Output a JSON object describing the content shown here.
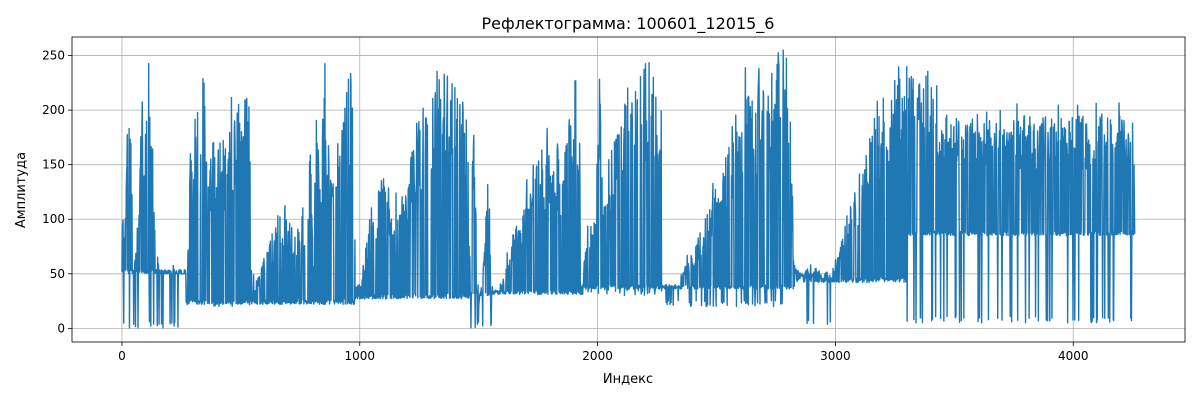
{
  "chart_data": {
    "type": "line",
    "title": "Рефлектограмма: 100601_12015_6",
    "xlabel": "Индекс",
    "ylabel": "Амплитуда",
    "xlim": [
      -210,
      4470
    ],
    "ylim": [
      -12.5,
      267
    ],
    "xticks": [
      0,
      1000,
      2000,
      3000,
      4000
    ],
    "yticks": [
      0,
      50,
      100,
      150,
      200,
      250
    ],
    "grid": true,
    "color": "#1f77b4",
    "series": [
      {
        "segments": [
          {
            "x0": 0,
            "x1": 270,
            "base": 50,
            "low": 0,
            "peaks": [
              [
                0,
                118
              ],
              [
                10,
                80
              ],
              [
                30,
                242
              ],
              [
                50,
                50
              ],
              [
                70,
                110
              ],
              [
                85,
                245
              ],
              [
                95,
                140
              ],
              [
                105,
                232
              ],
              [
                120,
                232
              ],
              [
                140,
                85
              ],
              [
                160,
                50
              ],
              [
                200,
                50
              ],
              [
                240,
                50
              ],
              [
                265,
                50
              ]
            ]
          },
          {
            "x0": 270,
            "x1": 540,
            "base": 22,
            "low": 20,
            "peaks": [
              [
                275,
                30
              ],
              [
                285,
                188
              ],
              [
                300,
                160
              ],
              [
                315,
                245
              ],
              [
                330,
                160
              ],
              [
                345,
                240
              ],
              [
                360,
                120
              ],
              [
                375,
                185
              ],
              [
                400,
                150
              ],
              [
                415,
                193
              ],
              [
                430,
                175
              ],
              [
                450,
                190
              ],
              [
                470,
                210
              ],
              [
                490,
                218
              ],
              [
                510,
                218
              ],
              [
                525,
                240
              ],
              [
                535,
                255
              ]
            ]
          },
          {
            "x0": 540,
            "x1": 980,
            "base": 22,
            "low": 22,
            "peaks": [
              [
                560,
                40
              ],
              [
                590,
                60
              ],
              [
                620,
                80
              ],
              [
                650,
                100
              ],
              [
                670,
                114
              ],
              [
                690,
                100
              ],
              [
                710,
                95
              ],
              [
                730,
                85
              ],
              [
                750,
                90
              ],
              [
                770,
                105
              ],
              [
                785,
                100
              ],
              [
                795,
                220
              ],
              [
                805,
                50
              ],
              [
                820,
                250
              ],
              [
                835,
                120
              ],
              [
                850,
                250
              ],
              [
                865,
                190
              ],
              [
                880,
                170
              ],
              [
                900,
                160
              ],
              [
                920,
                200
              ],
              [
                940,
                215
              ],
              [
                955,
                240
              ],
              [
                970,
                250
              ],
              [
                978,
                120
              ]
            ]
          },
          {
            "x0": 980,
            "x1": 1460,
            "base": 27,
            "low": 27,
            "peaks": [
              [
                1000,
                40
              ],
              [
                1030,
                80
              ],
              [
                1060,
                110
              ],
              [
                1080,
                130
              ],
              [
                1100,
                140
              ],
              [
                1120,
                130
              ],
              [
                1140,
                128
              ],
              [
                1160,
                130
              ],
              [
                1180,
                120
              ],
              [
                1200,
                140
              ],
              [
                1220,
                170
              ],
              [
                1240,
                190
              ],
              [
                1260,
                205
              ],
              [
                1280,
                215
              ],
              [
                1300,
                220
              ],
              [
                1320,
                230
              ],
              [
                1340,
                235
              ],
              [
                1360,
                240
              ],
              [
                1380,
                238
              ],
              [
                1400,
                242
              ],
              [
                1420,
                245
              ],
              [
                1440,
                240
              ],
              [
                1455,
                200
              ]
            ]
          },
          {
            "x0": 1460,
            "x1": 1560,
            "base": 30,
            "low": 0,
            "peaks": [
              [
                1465,
                80
              ],
              [
                1480,
                200
              ],
              [
                1500,
                20
              ],
              [
                1520,
                60
              ],
              [
                1540,
                150
              ],
              [
                1555,
                40
              ]
            ]
          },
          {
            "x0": 1560,
            "x1": 1930,
            "base": 31,
            "low": 30,
            "peaks": [
              [
                1580,
                35
              ],
              [
                1610,
                50
              ],
              [
                1640,
                85
              ],
              [
                1670,
                100
              ],
              [
                1700,
                125
              ],
              [
                1720,
                140
              ],
              [
                1740,
                160
              ],
              [
                1760,
                165
              ],
              [
                1780,
                170
              ],
              [
                1800,
                172
              ],
              [
                1820,
                168
              ],
              [
                1840,
                162
              ],
              [
                1860,
                155
              ],
              [
                1880,
                200
              ],
              [
                1900,
                225
              ],
              [
                1915,
                245
              ],
              [
                1925,
                150
              ]
            ]
          },
          {
            "x0": 1930,
            "x1": 2270,
            "base": 36,
            "low": 30,
            "peaks": [
              [
                1935,
                30
              ],
              [
                1950,
                90
              ],
              [
                1970,
                100
              ],
              [
                1990,
                105
              ],
              [
                2010,
                245
              ],
              [
                2020,
                120
              ],
              [
                2040,
                140
              ],
              [
                2060,
                150
              ],
              [
                2080,
                190
              ],
              [
                2100,
                210
              ],
              [
                2120,
                220
              ],
              [
                2140,
                230
              ],
              [
                2160,
                235
              ],
              [
                2180,
                240
              ],
              [
                2200,
                245
              ],
              [
                2220,
                250
              ],
              [
                2240,
                250
              ],
              [
                2260,
                200
              ]
            ]
          },
          {
            "x0": 2270,
            "x1": 2350,
            "base": 36,
            "low": 20,
            "peaks": [
              [
                2280,
                40
              ],
              [
                2300,
                38
              ],
              [
                2320,
                40
              ],
              [
                2340,
                38
              ]
            ]
          },
          {
            "x0": 2350,
            "x1": 2830,
            "base": 36,
            "low": 20,
            "peaks": [
              [
                2360,
                55
              ],
              [
                2380,
                60
              ],
              [
                2400,
                70
              ],
              [
                2420,
                80
              ],
              [
                2440,
                95
              ],
              [
                2460,
                110
              ],
              [
                2480,
                120
              ],
              [
                2500,
                130
              ],
              [
                2520,
                150
              ],
              [
                2540,
                165
              ],
              [
                2560,
                180
              ],
              [
                2580,
                195
              ],
              [
                2600,
                210
              ],
              [
                2620,
                225
              ],
              [
                2640,
                235
              ],
              [
                2650,
                250
              ],
              [
                2660,
                190
              ],
              [
                2680,
                245
              ],
              [
                2700,
                225
              ],
              [
                2720,
                230
              ],
              [
                2740,
                240
              ],
              [
                2760,
                255
              ],
              [
                2780,
                245
              ],
              [
                2795,
                250
              ],
              [
                2810,
                210
              ],
              [
                2825,
                60
              ]
            ]
          },
          {
            "x0": 2830,
            "x1": 2990,
            "base": 42,
            "low": 2,
            "peaks": [
              [
                2840,
                55
              ],
              [
                2860,
                50
              ],
              [
                2880,
                55
              ],
              [
                2900,
                50
              ],
              [
                2920,
                58
              ],
              [
                2940,
                50
              ],
              [
                2960,
                55
              ],
              [
                2985,
                48
              ]
            ]
          },
          {
            "x0": 2990,
            "x1": 3300,
            "base": 42,
            "low": 42,
            "peaks": [
              [
                3000,
                55
              ],
              [
                3020,
                80
              ],
              [
                3040,
                100
              ],
              [
                3060,
                110
              ],
              [
                3080,
                125
              ],
              [
                3100,
                140
              ],
              [
                3120,
                160
              ],
              [
                3140,
                175
              ],
              [
                3160,
                185
              ],
              [
                3180,
                195
              ],
              [
                3200,
                205
              ],
              [
                3220,
                215
              ],
              [
                3240,
                230
              ],
              [
                3260,
                245
              ],
              [
                3275,
                255
              ],
              [
                3290,
                250
              ]
            ]
          },
          {
            "x0": 3300,
            "x1": 4260,
            "base": 85,
            "low": 5,
            "peaks": [
              [
                3310,
                245
              ],
              [
                3330,
                240
              ],
              [
                3350,
                235
              ],
              [
                3370,
                240
              ],
              [
                3390,
                230
              ],
              [
                3410,
                225
              ],
              [
                3430,
                215
              ],
              [
                3450,
                208
              ],
              [
                3470,
                200
              ],
              [
                3490,
                195
              ],
              [
                3510,
                195
              ],
              [
                3530,
                195
              ],
              [
                3550,
                195
              ],
              [
                3570,
                195
              ],
              [
                3590,
                195
              ],
              [
                3610,
                195
              ],
              [
                3630,
                195
              ],
              [
                3650,
                195
              ],
              [
                3670,
                195
              ],
              [
                3690,
                195
              ],
              [
                3710,
                195
              ],
              [
                3730,
                195
              ],
              [
                3750,
                195
              ],
              [
                3770,
                195
              ],
              [
                3790,
                195
              ],
              [
                3810,
                195
              ],
              [
                3830,
                195
              ],
              [
                3850,
                195
              ],
              [
                3870,
                195
              ],
              [
                3890,
                195
              ],
              [
                3910,
                195
              ],
              [
                3930,
                195
              ],
              [
                3950,
                195
              ],
              [
                3970,
                195
              ],
              [
                3990,
                195
              ],
              [
                4010,
                195
              ],
              [
                4030,
                195
              ],
              [
                4050,
                195
              ],
              [
                4070,
                195
              ],
              [
                4090,
                195
              ],
              [
                4110,
                195
              ],
              [
                4130,
                195
              ],
              [
                4150,
                195
              ],
              [
                4170,
                195
              ],
              [
                4190,
                195
              ],
              [
                4210,
                195
              ],
              [
                4230,
                195
              ],
              [
                4250,
                195
              ],
              [
                4258,
                130
              ]
            ]
          }
        ]
      }
    ]
  }
}
